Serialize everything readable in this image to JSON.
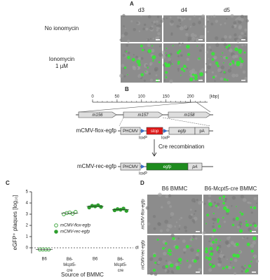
{
  "panel_a": {
    "label": "A",
    "columns": [
      "d3",
      "d4",
      "d5"
    ],
    "rows": [
      [
        "No ionomycin"
      ],
      [
        "Ionomycin",
        "1 µM"
      ]
    ]
  },
  "panel_b": {
    "label": "B",
    "ruler": {
      "xlim": [
        0,
        235
      ],
      "xticks": [
        0,
        50,
        100,
        150,
        200
      ],
      "unit": "[kbp]"
    },
    "genes": [
      "m156",
      "m157",
      "m158"
    ],
    "constructs": [
      {
        "name": "mCMV-flox-egfp",
        "elements": [
          "PHCMV",
          "stop",
          "egfp",
          "pA"
        ]
      },
      {
        "name": "mCMV-rec-egfp",
        "elements": [
          "PHCMV",
          "egfp",
          "pA"
        ]
      }
    ],
    "site": "loxP",
    "step": "Cre recombination"
  },
  "chart_data": {
    "type": "scatter",
    "label": "C",
    "y_label": "eGFP⁺ plaques [log₁₀]",
    "x_label": "Source of BMMC",
    "categories": [
      "B6",
      "B6-Mcpt5-cre",
      "B6",
      "B6-Mcpt5-cre"
    ],
    "series": [
      {
        "name": "mCMV-flox-egfp",
        "marker": "open",
        "color": "#2e9e2e",
        "values": [
          [
            -0.15,
            -0.15,
            -0.15,
            -0.15
          ],
          [
            3.0,
            3.1,
            3.15,
            3.05,
            3.2
          ],
          null,
          null
        ]
      },
      {
        "name": "mCMV-rec-egfp",
        "marker": "filled",
        "color": "#2e9e2e",
        "values": [
          null,
          null,
          [
            3.6,
            3.75,
            3.7,
            3.8,
            3.65
          ],
          [
            3.35,
            3.45,
            3.4,
            3.5,
            3.3
          ]
        ]
      }
    ],
    "ylim": [
      -0.5,
      5
    ],
    "yticks": [
      0,
      1,
      2,
      3,
      4,
      5
    ],
    "detection_limit": {
      "value": 0,
      "label": "dl"
    },
    "legend": "bottom"
  },
  "panel_d": {
    "label": "D",
    "columns": [
      "B6 BMMC",
      "B6-Mcpt5-cre BMMC"
    ],
    "rows": [
      "mCMV-flox-egfp",
      "mCMV-rec-egfp"
    ]
  }
}
